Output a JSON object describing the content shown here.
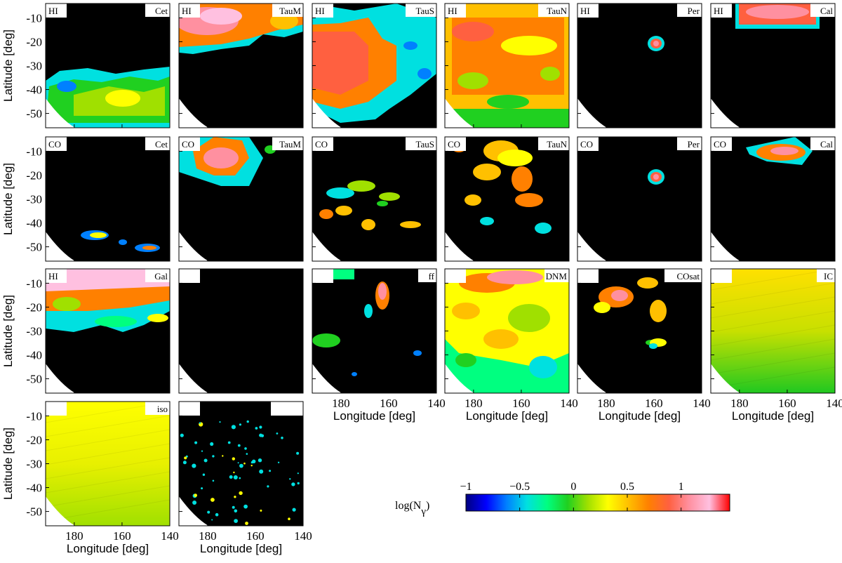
{
  "colors": {
    "colormap": [
      "#000080",
      "#0000ff",
      "#0080ff",
      "#00e0e0",
      "#00ff80",
      "#20d020",
      "#a0e000",
      "#ffff00",
      "#ffc000",
      "#ff8000",
      "#ff6040",
      "#ff90a0",
      "#ffc0e0",
      "#ff0000"
    ],
    "background": "#000000",
    "mask": "#ffffff"
  },
  "chart_data": {
    "type": "heatmap",
    "description_grid": "4 rows x 6 columns of gamma-ray count map panels",
    "xlabel": "Longitude [deg]",
    "ylabel": "Latitude [deg]",
    "xlim": [
      192,
      140
    ],
    "ylim": [
      -56,
      -4
    ],
    "x_ticks": [
      "180",
      "160",
      "140"
    ],
    "y_ticks": [
      "-10",
      "-20",
      "-30",
      "-40",
      "-50"
    ],
    "panels": [
      {
        "row": 0,
        "col": 0,
        "left": "HI",
        "right": "Cet",
        "structure": "cet"
      },
      {
        "row": 0,
        "col": 1,
        "left": "HI",
        "right": "TauM",
        "structure": "taum_hi"
      },
      {
        "row": 0,
        "col": 2,
        "left": "HI",
        "right": "TauS",
        "structure": "taus_hi"
      },
      {
        "row": 0,
        "col": 3,
        "left": "HI",
        "right": "TauN",
        "structure": "taun_hi"
      },
      {
        "row": 0,
        "col": 4,
        "left": "HI",
        "right": "Per",
        "structure": "per"
      },
      {
        "row": 0,
        "col": 5,
        "left": "HI",
        "right": "Cal",
        "structure": "cal_hi"
      },
      {
        "row": 1,
        "col": 0,
        "left": "CO",
        "right": "Cet",
        "structure": "cet_co"
      },
      {
        "row": 1,
        "col": 1,
        "left": "CO",
        "right": "TauM",
        "structure": "taum_co"
      },
      {
        "row": 1,
        "col": 2,
        "left": "CO",
        "right": "TauS",
        "structure": "taus_co"
      },
      {
        "row": 1,
        "col": 3,
        "left": "CO",
        "right": "TauN",
        "structure": "taun_co"
      },
      {
        "row": 1,
        "col": 4,
        "left": "CO",
        "right": "Per",
        "structure": "per"
      },
      {
        "row": 1,
        "col": 5,
        "left": "CO",
        "right": "Cal",
        "structure": "cal_co"
      },
      {
        "row": 2,
        "col": 0,
        "left": "HI",
        "right": "Gal",
        "structure": "gal"
      },
      {
        "row": 2,
        "col": 1,
        "left": "",
        "right": "",
        "structure": "empty"
      },
      {
        "row": 2,
        "col": 2,
        "left": "",
        "right": "ff",
        "structure": "ff"
      },
      {
        "row": 2,
        "col": 3,
        "left": "",
        "right": "DNM",
        "structure": "dnm"
      },
      {
        "row": 2,
        "col": 4,
        "left": "",
        "right": "COsat",
        "structure": "cosat"
      },
      {
        "row": 2,
        "col": 5,
        "left": "",
        "right": "IC",
        "structure": "ic"
      },
      {
        "row": 3,
        "col": 0,
        "left": "",
        "right": "iso",
        "structure": "iso"
      },
      {
        "row": 3,
        "col": 1,
        "left": "",
        "right": "",
        "structure": "sources"
      }
    ],
    "colorbar": {
      "label_main": "log(N",
      "label_sub": "γ",
      "label_close": ")",
      "range": [
        -1,
        1.4
      ],
      "ticks": [
        "−1",
        "−0.5",
        "0",
        "0.5",
        "1"
      ],
      "tick_values": [
        -1,
        -0.5,
        0,
        0.5,
        1
      ]
    }
  }
}
